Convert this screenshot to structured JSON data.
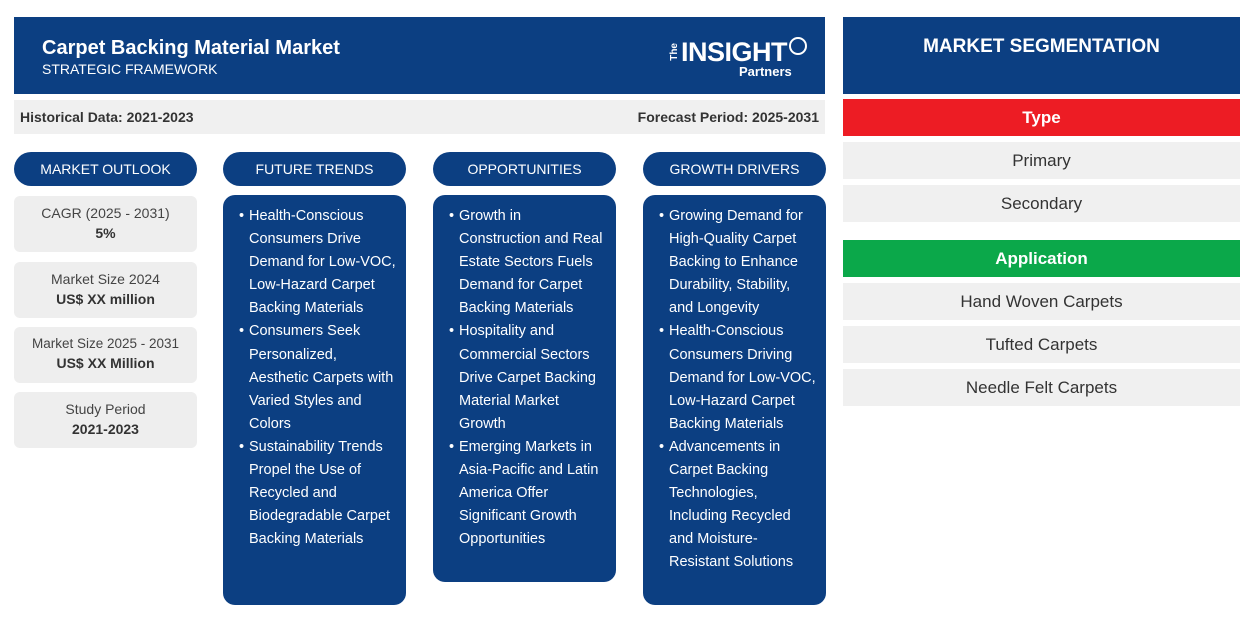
{
  "header": {
    "title": "Carpet Backing Material Market",
    "subtitle": "STRATEGIC FRAMEWORK",
    "logo": {
      "the": "The",
      "insight": "INSIGHT",
      "partners": "Partners"
    }
  },
  "period": {
    "historical": "Historical Data: 2021-2023",
    "forecast": "Forecast Period: 2025-2031"
  },
  "outlook": {
    "heading": "MARKET OUTLOOK",
    "stats": [
      {
        "label": "CAGR (2025 - 2031)",
        "value": "5%"
      },
      {
        "label": "Market Size 2024",
        "value": "US$ XX million"
      },
      {
        "label": "Market Size 2025 - 2031",
        "value": "US$ XX Million"
      },
      {
        "label": "Study Period",
        "value": "2021-2023"
      }
    ]
  },
  "trends": {
    "heading": "FUTURE TRENDS",
    "items": [
      "Health-Conscious Consumers Drive Demand for Low-VOC, Low-Hazard Carpet Backing Materials",
      "Consumers Seek Personalized, Aesthetic Carpets with Varied Styles and Colors",
      "Sustainability Trends Propel the Use of Recycled and Biodegradable Carpet Backing Materials"
    ]
  },
  "opportunities": {
    "heading": "OPPORTUNITIES",
    "items": [
      "Growth in Construction and Real Estate Sectors Fuels Demand for Carpet Backing Materials",
      "Hospitality and Commercial Sectors Drive Carpet Backing Material Market Growth",
      "Emerging Markets in Asia-Pacific and Latin America Offer Significant Growth Opportunities"
    ]
  },
  "drivers": {
    "heading": "GROWTH DRIVERS",
    "items": [
      "Growing Demand for High-Quality Carpet Backing to Enhance Durability, Stability, and Longevity",
      "Health-Conscious Consumers Driving Demand for Low-VOC, Low-Hazard Carpet Backing Materials",
      "Advancements in Carpet Backing Technologies, Including Recycled and Moisture-Resistant Solutions"
    ]
  },
  "segmentation": {
    "heading": "MARKET SEGMENTATION",
    "type": {
      "label": "Type",
      "color": "#ed1c24",
      "items": [
        "Primary",
        "Secondary"
      ]
    },
    "application": {
      "label": "Application",
      "color": "#0ba84a",
      "items": [
        "Hand Woven Carpets",
        "Tufted Carpets",
        "Needle Felt Carpets"
      ]
    }
  }
}
